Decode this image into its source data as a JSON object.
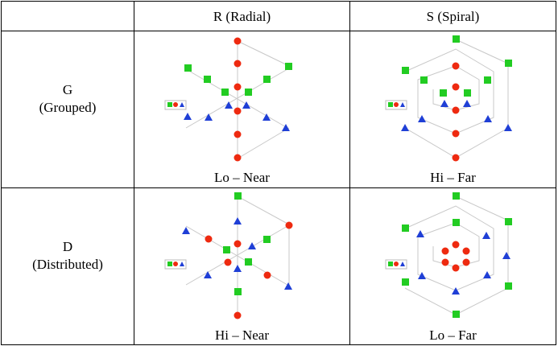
{
  "header": {
    "col_radial": "R (Radial)",
    "col_spiral": "S (Spiral)"
  },
  "rows": {
    "grouped": {
      "code": "G",
      "name": "(Grouped)"
    },
    "distributed": {
      "code": "D",
      "name": "(Distributed)"
    }
  },
  "captions": {
    "grouped_radial": "Lo – Near",
    "grouped_spiral": "Hi – Far",
    "distributed_radial": "Hi – Near",
    "distributed_spiral": "Lo – Far"
  },
  "colors": {
    "square": "#22cc22",
    "circle": "#ee2a10",
    "triangle": "#1f3fd6",
    "link": "#c8c8c8"
  },
  "shapes": [
    "square",
    "circle",
    "triangle"
  ]
}
